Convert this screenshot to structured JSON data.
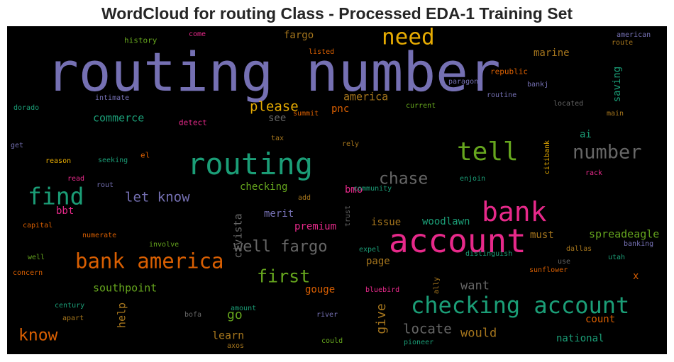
{
  "chart_data": {
    "type": "wordcloud",
    "title": "WordCloud for routing Class - Processed EDA-1 Training Set",
    "background": "#000000",
    "colormap": [
      "#7570b3",
      "#1b9e77",
      "#d95f02",
      "#e7298a",
      "#66a61e",
      "#e6ab02",
      "#a6761d",
      "#666666"
    ],
    "words": [
      {
        "text": "routing number",
        "color": "#7570b3"
      },
      {
        "text": "account",
        "color": "#e7298a"
      },
      {
        "text": "routing",
        "color": "#1b9e77"
      },
      {
        "text": "bank",
        "color": "#e7298a"
      },
      {
        "text": "need",
        "color": "#e6ab02"
      },
      {
        "text": "tell",
        "color": "#66a61e"
      },
      {
        "text": "checking account",
        "color": "#1b9e77"
      },
      {
        "text": "bank america",
        "color": "#d95f02"
      },
      {
        "text": "find",
        "color": "#1b9e77"
      },
      {
        "text": "number",
        "color": "#666666"
      },
      {
        "text": "well fargo",
        "color": "#666666"
      },
      {
        "text": "first",
        "color": "#66a61e"
      },
      {
        "text": "chase",
        "color": "#666666"
      },
      {
        "text": "know",
        "color": "#d95f02"
      },
      {
        "text": "locate",
        "color": "#666666"
      },
      {
        "text": "please",
        "color": "#e6ab02"
      },
      {
        "text": "let know",
        "color": "#7570b3"
      },
      {
        "text": "give",
        "color": "#a6761d"
      },
      {
        "text": "want",
        "color": "#666666"
      },
      {
        "text": "would",
        "color": "#a6761d"
      },
      {
        "text": "america",
        "color": "#a6761d"
      },
      {
        "text": "commerce",
        "color": "#1b9e77"
      },
      {
        "text": "go",
        "color": "#66a61e"
      },
      {
        "text": "southpoint",
        "color": "#66a61e"
      },
      {
        "text": "civista",
        "color": "#666666"
      },
      {
        "text": "help",
        "color": "#a6761d"
      },
      {
        "text": "gouge",
        "color": "#d95f02"
      },
      {
        "text": "learn",
        "color": "#a6761d"
      },
      {
        "text": "page",
        "color": "#a6761d"
      },
      {
        "text": "merit",
        "color": "#7570b3"
      },
      {
        "text": "premium",
        "color": "#e7298a"
      },
      {
        "text": "issue",
        "color": "#a6761d"
      },
      {
        "text": "woodlawn",
        "color": "#1b9e77"
      },
      {
        "text": "must",
        "color": "#a6761d"
      },
      {
        "text": "spreadeagle",
        "color": "#66a61e"
      },
      {
        "text": "count",
        "color": "#d95f02"
      },
      {
        "text": "national",
        "color": "#1b9e77"
      },
      {
        "text": "checking",
        "color": "#66a61e"
      },
      {
        "text": "bmo",
        "color": "#e7298a"
      },
      {
        "text": "bbt",
        "color": "#e7298a"
      },
      {
        "text": "pnc",
        "color": "#d95f02"
      },
      {
        "text": "see",
        "color": "#666666"
      },
      {
        "text": "fargo",
        "color": "#a6761d"
      },
      {
        "text": "marine",
        "color": "#a6761d"
      },
      {
        "text": "saving",
        "color": "#1b9e77"
      },
      {
        "text": "ai",
        "color": "#1b9e77"
      },
      {
        "text": "x",
        "color": "#d95f02"
      },
      {
        "text": "american",
        "color": "#7570b3"
      },
      {
        "text": "route",
        "color": "#a6761d"
      },
      {
        "text": "history",
        "color": "#66a61e"
      },
      {
        "text": "come",
        "color": "#e7298a"
      },
      {
        "text": "listed",
        "color": "#d95f02"
      },
      {
        "text": "republic",
        "color": "#d95f02"
      },
      {
        "text": "paragon",
        "color": "#7570b3"
      },
      {
        "text": "bankj",
        "color": "#7570b3"
      },
      {
        "text": "routine",
        "color": "#7570b3"
      },
      {
        "text": "intimate",
        "color": "#7570b3"
      },
      {
        "text": "dorado",
        "color": "#1b9e77"
      },
      {
        "text": "summit",
        "color": "#d95f02"
      },
      {
        "text": "current",
        "color": "#66a61e"
      },
      {
        "text": "located",
        "color": "#666666"
      },
      {
        "text": "main",
        "color": "#a6761d"
      },
      {
        "text": "detect",
        "color": "#e7298a"
      },
      {
        "text": "tax",
        "color": "#a6761d"
      },
      {
        "text": "get",
        "color": "#7570b3"
      },
      {
        "text": "el",
        "color": "#d95f02"
      },
      {
        "text": "rely",
        "color": "#a6761d"
      },
      {
        "text": "citibank",
        "color": "#e6ab02"
      },
      {
        "text": "reason",
        "color": "#e6ab02"
      },
      {
        "text": "seeking",
        "color": "#1b9e77"
      },
      {
        "text": "read",
        "color": "#e7298a"
      },
      {
        "text": "enjoin",
        "color": "#1b9e77"
      },
      {
        "text": "rack",
        "color": "#e7298a"
      },
      {
        "text": "rout",
        "color": "#7570b3"
      },
      {
        "text": "community",
        "color": "#1b9e77"
      },
      {
        "text": "add",
        "color": "#a6761d"
      },
      {
        "text": "trust",
        "color": "#666666"
      },
      {
        "text": "capital",
        "color": "#d95f02"
      },
      {
        "text": "numerate",
        "color": "#d95f02"
      },
      {
        "text": "involve",
        "color": "#66a61e"
      },
      {
        "text": "well",
        "color": "#66a61e"
      },
      {
        "text": "expel",
        "color": "#1b9e77"
      },
      {
        "text": "distinguish",
        "color": "#1b9e77"
      },
      {
        "text": "dallas",
        "color": "#a6761d"
      },
      {
        "text": "banking",
        "color": "#7570b3"
      },
      {
        "text": "utah",
        "color": "#1b9e77"
      },
      {
        "text": "use",
        "color": "#666666"
      },
      {
        "text": "concern",
        "color": "#d95f02"
      },
      {
        "text": "sunflower",
        "color": "#d95f02"
      },
      {
        "text": "ally",
        "color": "#a6761d"
      },
      {
        "text": "bluebird",
        "color": "#e7298a"
      },
      {
        "text": "century",
        "color": "#1b9e77"
      },
      {
        "text": "amount",
        "color": "#1b9e77"
      },
      {
        "text": "river",
        "color": "#7570b3"
      },
      {
        "text": "apart",
        "color": "#a6761d"
      },
      {
        "text": "bofa",
        "color": "#666666"
      },
      {
        "text": "axos",
        "color": "#a6761d"
      },
      {
        "text": "could",
        "color": "#66a61e"
      },
      {
        "text": "pioneer",
        "color": "#1b9e77"
      }
    ]
  }
}
